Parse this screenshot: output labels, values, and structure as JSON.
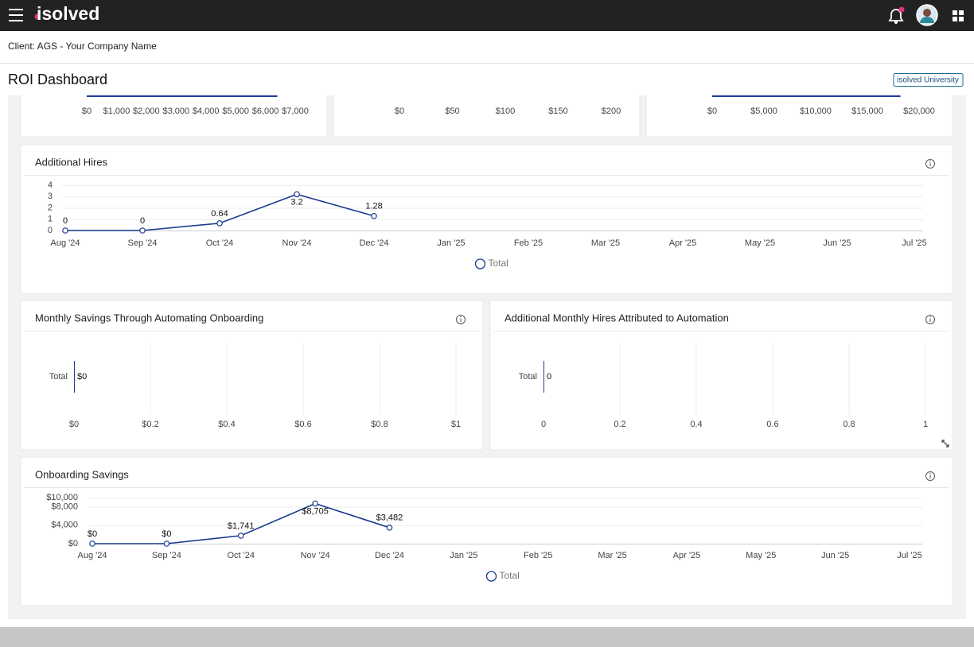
{
  "header": {
    "logo": "isolved"
  },
  "client": "Client: AGS - Your Company Name",
  "page_title": "ROI Dashboard",
  "university_link": "isolved University",
  "chart_data": [
    {
      "type": "hbar",
      "xlim": [
        0,
        7000
      ],
      "values": [
        6400
      ],
      "color": "#1f3c99",
      "xticks": [
        {
          "value": 0,
          "label": "$0"
        },
        {
          "value": 1000,
          "label": "$1,000"
        },
        {
          "value": 2000,
          "label": "$2,000"
        },
        {
          "value": 3000,
          "label": "$3,000"
        },
        {
          "value": 4000,
          "label": "$4,000"
        },
        {
          "value": 5000,
          "label": "$5,000"
        },
        {
          "value": 6000,
          "label": "$6,000"
        },
        {
          "value": 7000,
          "label": "$7,000"
        }
      ]
    },
    {
      "type": "hbar",
      "xlim": [
        0,
        200
      ],
      "color": "#1f3c99",
      "xticks": [
        {
          "value": 0,
          "label": "$0"
        },
        {
          "value": 50,
          "label": "$50"
        },
        {
          "value": 100,
          "label": "$100"
        },
        {
          "value": 150,
          "label": "$150"
        },
        {
          "value": 200,
          "label": "$200"
        }
      ]
    },
    {
      "type": "hbar",
      "xlim": [
        0,
        20000
      ],
      "values": [
        18200
      ],
      "color": "#1f3c99",
      "xticks": [
        {
          "value": 0,
          "label": "$0"
        },
        {
          "value": 5000,
          "label": "$5,000"
        },
        {
          "value": 10000,
          "label": "$10,000"
        },
        {
          "value": 15000,
          "label": "$15,000"
        },
        {
          "value": 20000,
          "label": "$20,000"
        }
      ]
    },
    {
      "type": "line",
      "title": "Additional Hires",
      "categories": [
        "Aug '24",
        "Sep '24",
        "Oct '24",
        "Nov '24",
        "Dec '24",
        "Jan '25",
        "Feb '25",
        "Mar '25",
        "Apr '25",
        "May '25",
        "Jun '25",
        "Jul '25"
      ],
      "series": [
        {
          "name": "Total",
          "color": "#1a3a8f",
          "values": [
            0,
            0,
            0.64,
            3.2,
            1.28,
            null,
            null,
            null,
            null,
            null,
            null,
            null
          ]
        }
      ],
      "ylim": [
        0,
        4
      ],
      "yticks": [
        0,
        1,
        2,
        3,
        4
      ],
      "grid": true
    },
    {
      "type": "hbar",
      "title": "Monthly Savings Through Automating Onboarding",
      "categories": [
        "Total"
      ],
      "values": [
        0
      ],
      "value_labels": [
        "$0"
      ],
      "color": "#1f3c99",
      "xlim": [
        0,
        1
      ],
      "xticks": [
        {
          "value": 0,
          "label": "$0"
        },
        {
          "value": 0.2,
          "label": "$0.2"
        },
        {
          "value": 0.4,
          "label": "$0.4"
        },
        {
          "value": 0.6,
          "label": "$0.6"
        },
        {
          "value": 0.8,
          "label": "$0.8"
        },
        {
          "value": 1,
          "label": "$1"
        }
      ],
      "grid": true
    },
    {
      "type": "hbar",
      "title": "Additional Monthly Hires Attributed to Automation",
      "categories": [
        "Total"
      ],
      "values": [
        0
      ],
      "color": "#1f3c99",
      "xlim": [
        0,
        1
      ],
      "xticks": [
        0,
        0.2,
        0.4,
        0.6,
        0.8,
        1
      ],
      "grid": true
    },
    {
      "type": "line",
      "title": "Onboarding Savings",
      "categories": [
        "Aug '24",
        "Sep '24",
        "Oct '24",
        "Nov '24",
        "Dec '24",
        "Jan '25",
        "Feb '25",
        "Mar '25",
        "Apr '25",
        "May '25",
        "Jun '25",
        "Jul '25"
      ],
      "series": [
        {
          "name": "Total",
          "color": "#1a3a8f",
          "values": [
            0,
            0,
            1741,
            8705,
            3482,
            null,
            null,
            null,
            null,
            null,
            null,
            null
          ],
          "value_labels": [
            "$0",
            "$0",
            "$1,741",
            "$8,705",
            "$3,482",
            null,
            null,
            null,
            null,
            null,
            null,
            null
          ]
        }
      ],
      "ylim": [
        0,
        10000
      ],
      "yticks": [
        {
          "value": 0,
          "label": "$0"
        },
        {
          "value": 4000,
          "label": "$4,000"
        },
        {
          "value": 8000,
          "label": "$8,000"
        },
        {
          "value": 10000,
          "label": "$10,000"
        }
      ],
      "grid": true
    }
  ]
}
